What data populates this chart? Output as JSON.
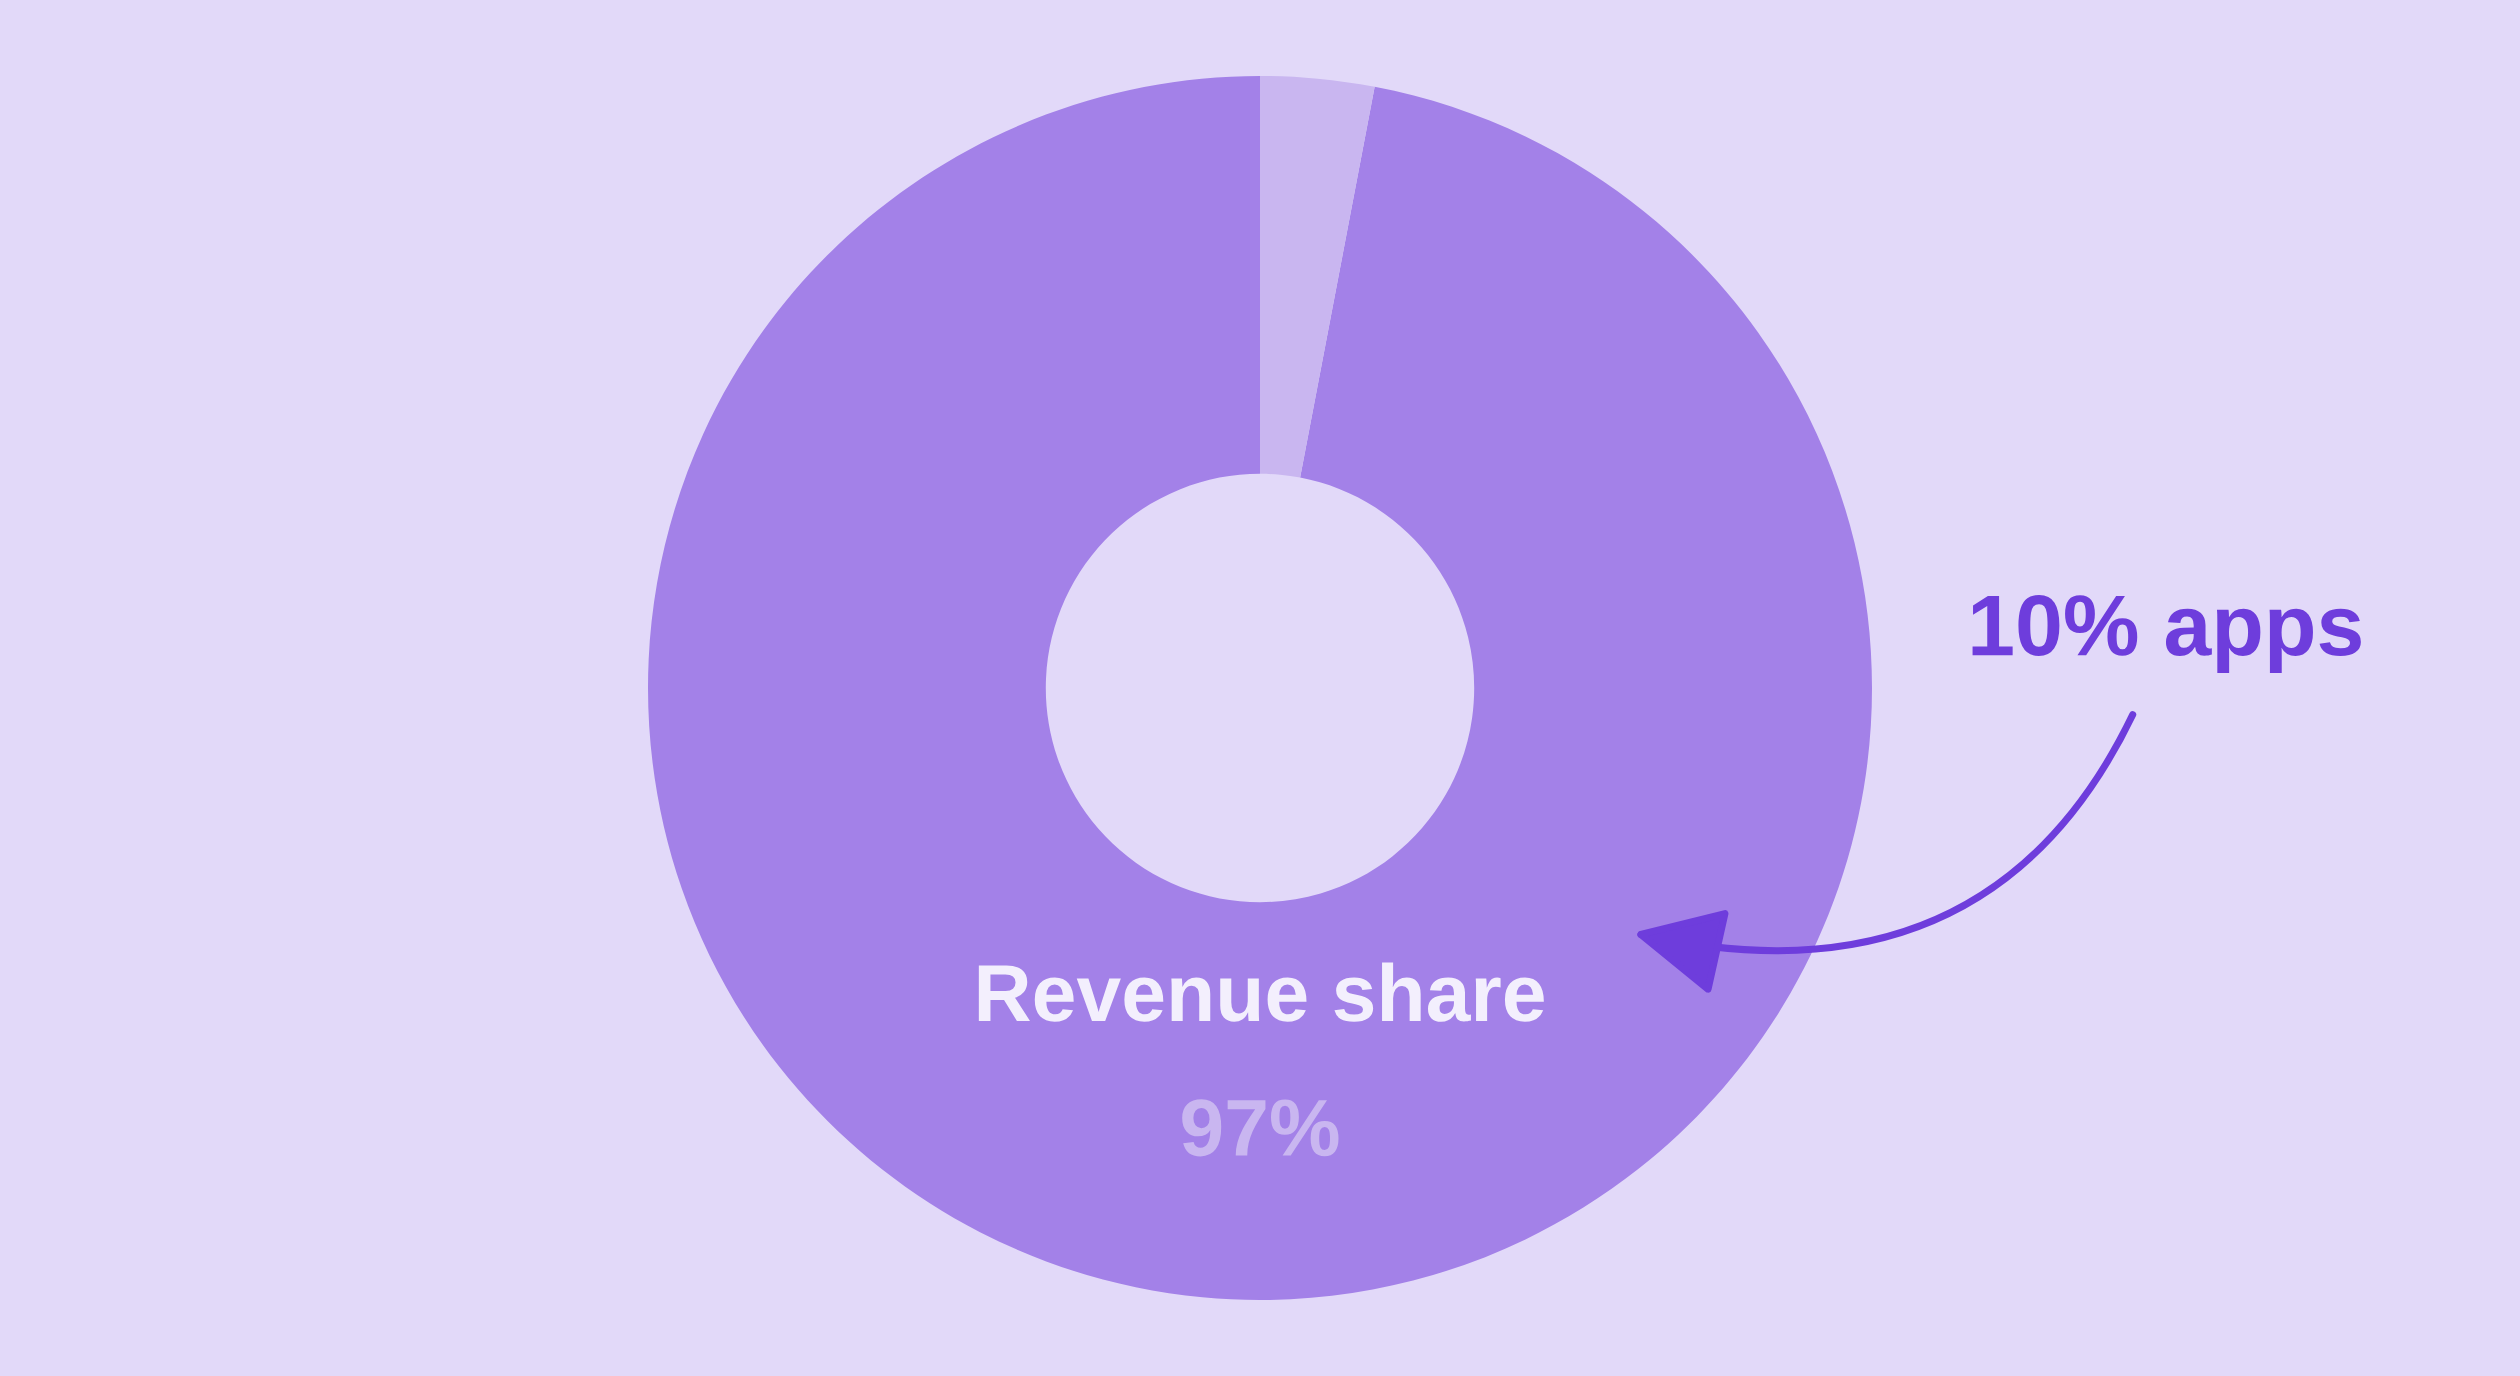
{
  "chart_data": {
    "type": "donut",
    "categories": [
      "Revenue share",
      null
    ],
    "values": [
      97,
      3
    ],
    "colors": [
      "#a381e8",
      "#c9b6f0"
    ],
    "value_labels": [
      "97%",
      null
    ],
    "annotations": [
      "10% apps"
    ]
  }
}
